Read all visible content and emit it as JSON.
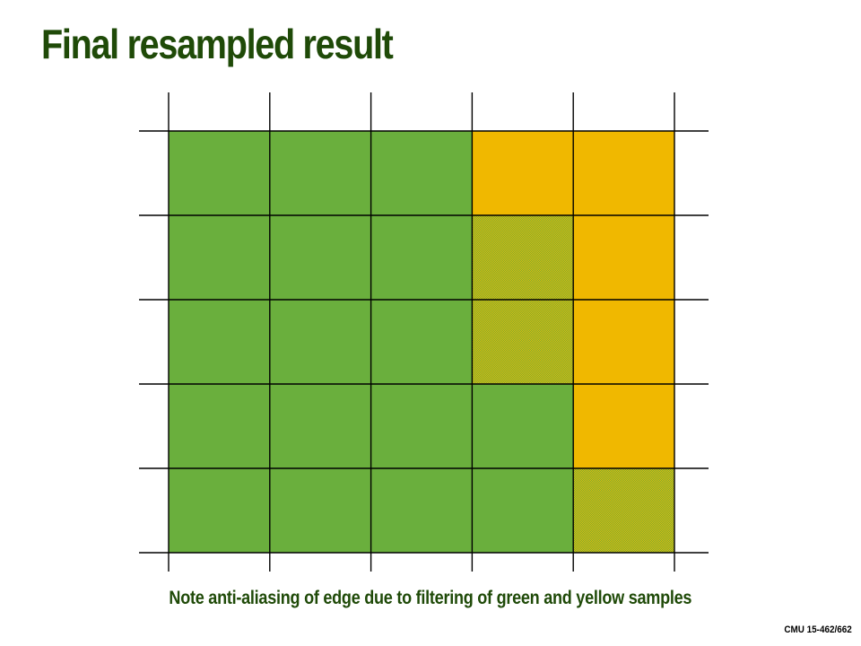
{
  "title": "Final resampled result",
  "caption": "Note anti-aliasing of edge due to filtering of green and yellow samples",
  "footer": "CMU 15-462/662",
  "colors": {
    "green": "#6aaf3d",
    "yellow": "#f0b800",
    "title_text": "#1f4a08",
    "grid_line": "#000000"
  },
  "grid": {
    "columns": 5,
    "rows": 5,
    "cells": [
      [
        "green",
        "green",
        "green",
        "yellow",
        "yellow"
      ],
      [
        "green",
        "green",
        "green",
        "blend",
        "yellow"
      ],
      [
        "green",
        "green",
        "green",
        "blend",
        "yellow"
      ],
      [
        "green",
        "green",
        "green",
        "green",
        "yellow"
      ],
      [
        "green",
        "green",
        "green",
        "green",
        "blend"
      ]
    ]
  }
}
